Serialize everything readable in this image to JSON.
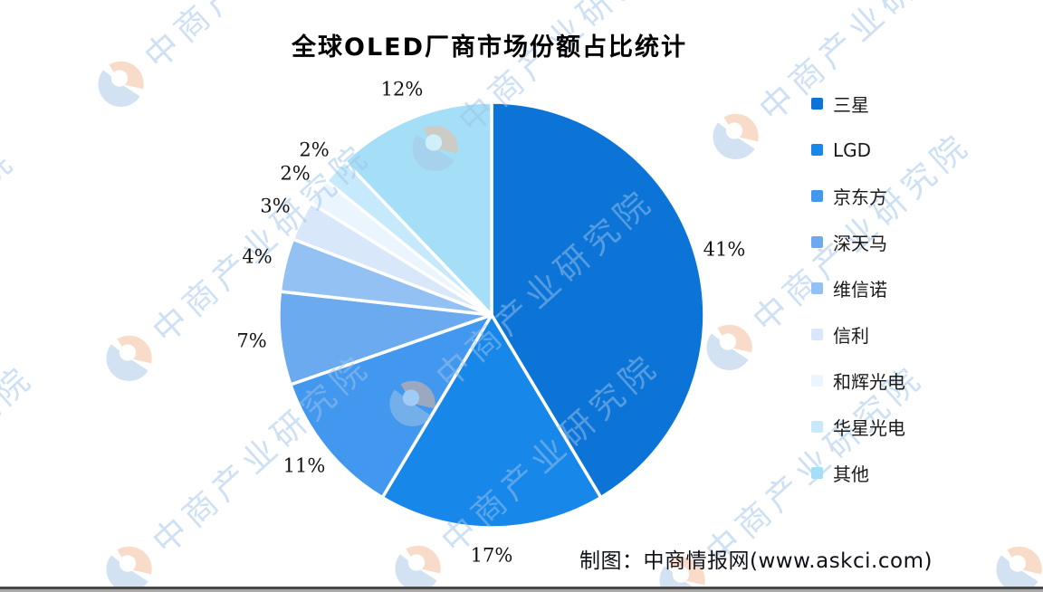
{
  "title": "全球OLED厂商市场份额占比统计",
  "chart_data": {
    "type": "pie",
    "title": "全球OLED厂商市场份额占比统计",
    "start_angle": "top",
    "direction": "clockwise",
    "legend_position": "right",
    "series": [
      {
        "name": "三星",
        "value": 41,
        "label": "41%",
        "color": "#0b74d6"
      },
      {
        "name": "LGD",
        "value": 17,
        "label": "17%",
        "color": "#1787ea"
      },
      {
        "name": "京东方",
        "value": 11,
        "label": "11%",
        "color": "#4198ee"
      },
      {
        "name": "深天马",
        "value": 7,
        "label": "7%",
        "color": "#6caaf0"
      },
      {
        "name": "维信诺",
        "value": 4,
        "label": "4%",
        "color": "#93c1f3"
      },
      {
        "name": "信利",
        "value": 3,
        "label": "3%",
        "color": "#d9e7fb"
      },
      {
        "name": "和辉光电",
        "value": 2,
        "label": "2%",
        "color": "#eaf5fe"
      },
      {
        "name": "华星光电",
        "value": 2,
        "label": "2%",
        "color": "#c6eafb"
      },
      {
        "name": "其他",
        "value": 12,
        "label": "12%",
        "color": "#a4dff7"
      }
    ]
  },
  "footer": {
    "credit": "制图：中商情报网(www.askci.com)"
  },
  "watermark": {
    "text": "中商产业研究院",
    "colors": {
      "text": "#9fc3e8",
      "logo_blue": "#a9c6e6",
      "logo_orange": "#f5b994"
    }
  }
}
